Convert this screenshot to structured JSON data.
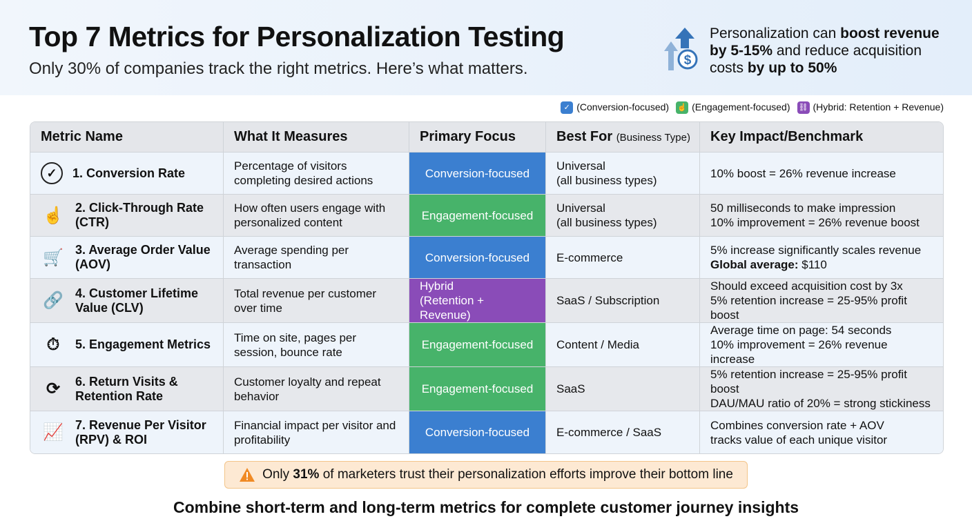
{
  "header": {
    "title": "Top 7 Metrics for Personalization Testing",
    "subtitle": "Only 30% of companies track the right metrics. Here’s what matters.",
    "stat": {
      "p1": "Personalization can ",
      "b1": "boost revenue by 5-15%",
      "p2": " and reduce acquisition costs ",
      "b2": "by up to 50%"
    }
  },
  "legend": [
    {
      "label": "(Conversion-focused)",
      "color": "#3b7fd0",
      "icon": "check-circle-icon"
    },
    {
      "label": "(Engagement-focused)",
      "color": "#47b36a",
      "icon": "pointer-hand-icon"
    },
    {
      "label": "(Hybrid: Retention + Revenue)",
      "color": "#8a4cb8",
      "icon": "link-icon"
    }
  ],
  "table": {
    "headers": [
      "Metric Name",
      "What It Measures",
      "Primary Focus",
      "Best For",
      "(Business Type)",
      "Key Impact/Benchmark"
    ],
    "rows": [
      {
        "icon": "check-circle-icon",
        "name": "1. Conversion Rate",
        "measures": "Percentage of visitors completing desired actions",
        "focus": "Conversion-focused",
        "best": "Universal\n(all business types)",
        "impact": "10% boost = 26% revenue increase",
        "impact_bold": ""
      },
      {
        "icon": "pointer-hand-icon",
        "name": "2. Click-Through Rate (CTR)",
        "measures": "How often users engage with personalized content",
        "focus": "Engagement-focused",
        "best": "Universal\n(all business types)",
        "impact": "50 milliseconds to make impression\n10% improvement = 26% revenue boost",
        "impact_bold": ""
      },
      {
        "icon": "cart-dollar-icon",
        "name": "3. Average Order Value (AOV)",
        "measures": "Average spending per transaction",
        "focus": "Conversion-focused",
        "best": "E-commerce",
        "impact": "5% increase significantly scales revenue",
        "impact_bold": "Global average:",
        "impact_tail": " $110"
      },
      {
        "icon": "link-dollar-icon",
        "name": "4. Customer Lifetime Value (CLV)",
        "measures": "Total revenue per customer over time",
        "focus": "Hybrid\n(Retention + Revenue)",
        "best": "SaaS / Subscription",
        "impact": "Should exceed acquisition cost by 3x\n5% retention increase = 25-95% profit boost",
        "impact_bold": ""
      },
      {
        "icon": "stopwatch-icon",
        "name": "5. Engagement Metrics",
        "measures": "Time on site, pages per session, bounce rate",
        "focus": "Engagement-focused",
        "best": "Content / Media",
        "impact": "Average time on page: 54 seconds\n10% improvement = 26% revenue increase",
        "impact_bold": ""
      },
      {
        "icon": "user-refresh-icon",
        "name": "6. Return Visits & Retention Rate",
        "measures": "Customer loyalty and repeat behavior",
        "focus": "Engagement-focused",
        "best": "SaaS",
        "impact": "5% retention increase = 25-95% profit boost\nDAU/MAU ratio of 20% = strong stickiness",
        "impact_bold": ""
      },
      {
        "icon": "chart-growth-icon",
        "name": "7. Revenue Per Visitor (RPV) & ROI",
        "measures": "Financial impact per visitor and profitability",
        "focus": "Conversion-focused",
        "best": "E-commerce / SaaS",
        "impact": "Combines conversion rate + AOV\ntracks value of each unique visitor",
        "impact_bold": ""
      }
    ]
  },
  "warning": {
    "p1": "Only ",
    "b": "31%",
    "p2": " of marketers trust their personalization efforts improve their bottom line",
    "icon": "warning-triangle-icon"
  },
  "footer": "Combine short-term and long-term metrics for complete customer journey insights"
}
